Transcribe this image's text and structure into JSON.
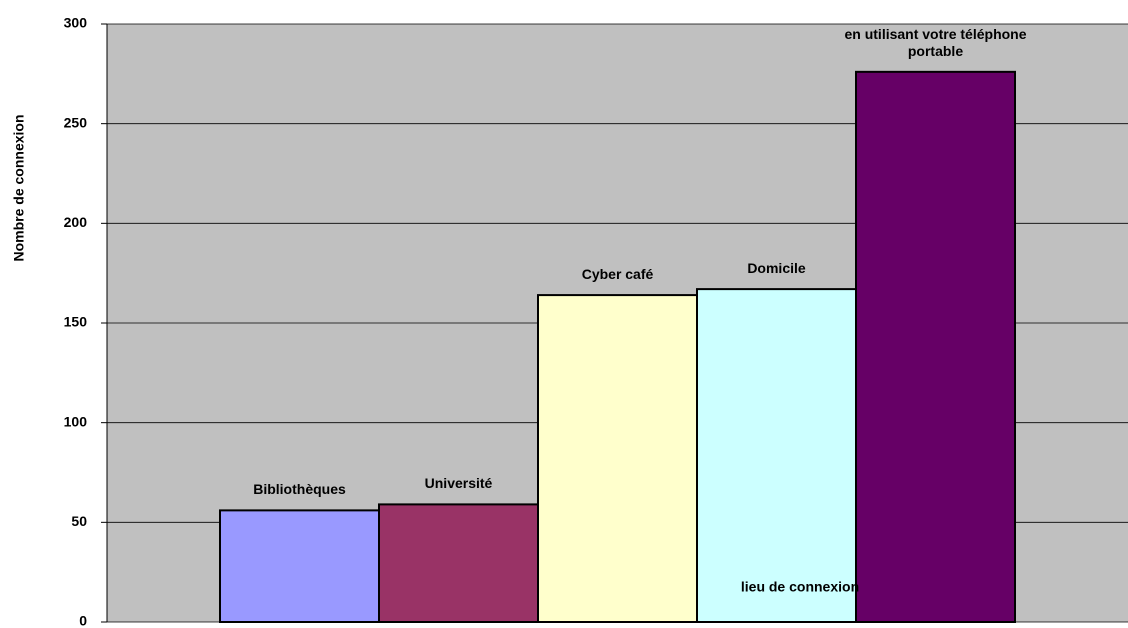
{
  "chart_data": {
    "type": "bar",
    "y_label": "Nombre de connexion",
    "x_label": "lieu de connexion",
    "categories": [
      "Bibliothèques",
      "Université",
      "Cyber café",
      "Domicile",
      "en utilisant votre téléphone portable"
    ],
    "values": [
      56,
      59,
      164,
      167,
      276
    ],
    "colors": [
      "#9999ff",
      "#993366",
      "#ffffcc",
      "#ccffff",
      "#660066"
    ],
    "background": "#c0c0c0",
    "ylim": [
      0,
      300
    ],
    "yticks": [
      0,
      50,
      100,
      150,
      200,
      250,
      300
    ],
    "grid": true
  }
}
